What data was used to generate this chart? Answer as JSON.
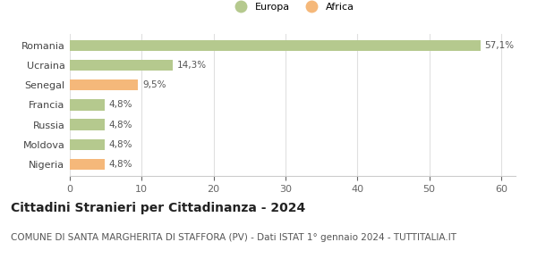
{
  "categories": [
    "Romania",
    "Ucraina",
    "Senegal",
    "Francia",
    "Russia",
    "Moldova",
    "Nigeria"
  ],
  "values": [
    57.1,
    14.3,
    9.5,
    4.8,
    4.8,
    4.8,
    4.8
  ],
  "labels": [
    "57,1%",
    "14,3%",
    "9,5%",
    "4,8%",
    "4,8%",
    "4,8%",
    "4,8%"
  ],
  "colors": [
    "#b5c98e",
    "#b5c98e",
    "#f5b87a",
    "#b5c98e",
    "#b5c98e",
    "#b5c98e",
    "#f5b87a"
  ],
  "legend_labels": [
    "Europa",
    "Africa"
  ],
  "legend_colors": [
    "#b5c98e",
    "#f5b87a"
  ],
  "xlim": [
    0,
    62
  ],
  "xticks": [
    0,
    10,
    20,
    30,
    40,
    50,
    60
  ],
  "title": "Cittadini Stranieri per Cittadinanza - 2024",
  "subtitle": "COMUNE DI SANTA MARGHERITA DI STAFFORA (PV) - Dati ISTAT 1° gennaio 2024 - TUTTITALIA.IT",
  "title_fontsize": 10,
  "subtitle_fontsize": 7.5,
  "label_fontsize": 7.5,
  "tick_fontsize": 8,
  "bg_color": "#ffffff",
  "grid_color": "#e0e0e0"
}
